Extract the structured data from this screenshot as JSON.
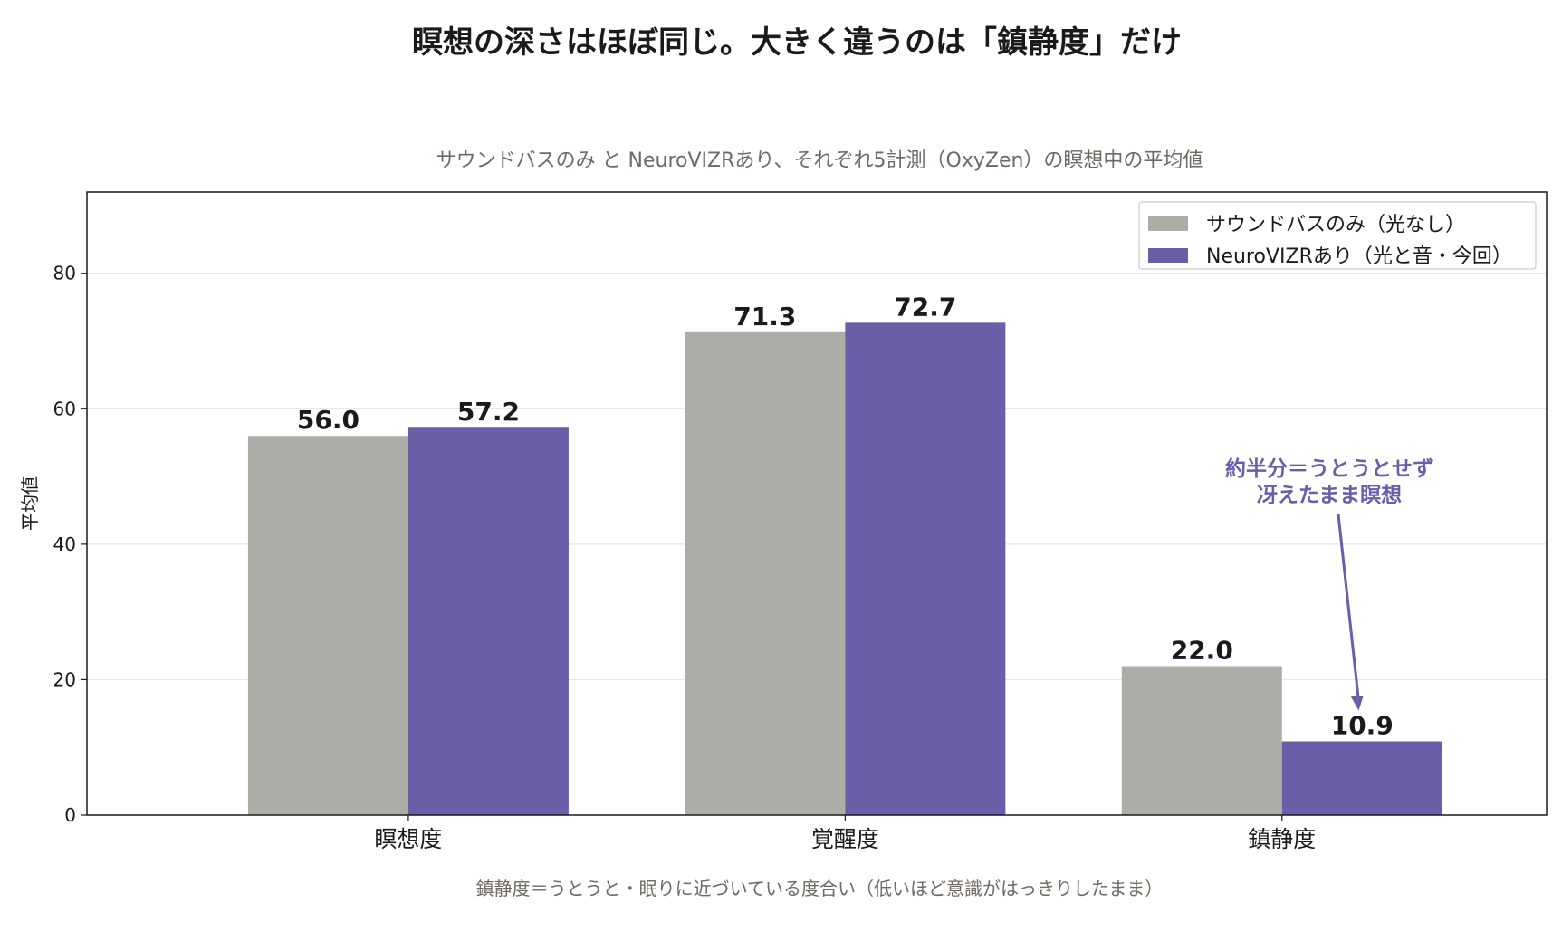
{
  "chart_data": {
    "type": "bar",
    "title": "瞑想の深さはほぼ同じ。大きく違うのは「鎮静度」だけ",
    "subtitle": "サウンドバスのみ と NeuroVIZRあり、それぞれ5計測（OxyZen）の瞑想中の平均値",
    "ylabel": "平均値",
    "xlabel": "",
    "categories": [
      "瞑想度",
      "覚醒度",
      "鎮静度"
    ],
    "ylim": [
      0,
      92
    ],
    "yticks": [
      0,
      20,
      40,
      60,
      80
    ],
    "grid": true,
    "legend_position": "top-right",
    "series": [
      {
        "name": "サウンドバスのみ（光なし）",
        "color": "#adaca7",
        "values": [
          56.0,
          71.3,
          22.0
        ],
        "labels": [
          "56.0",
          "71.3",
          "22.0"
        ]
      },
      {
        "name": "NeuroVIZRあり（光と音・今回）",
        "color": "#6b5ea8",
        "values": [
          57.2,
          72.7,
          10.9
        ],
        "labels": [
          "57.2",
          "72.7",
          "10.9"
        ]
      }
    ],
    "annotation": {
      "lines": [
        "約半分＝うとうとせず",
        "冴えたまま瞑想"
      ],
      "color": "#6b5ea8",
      "target_category": 2,
      "target_series": 1
    },
    "footnote": "鎮静度＝うとうと・眠りに近づいている度合い（低いほど意識がはっきりしたまま）"
  }
}
